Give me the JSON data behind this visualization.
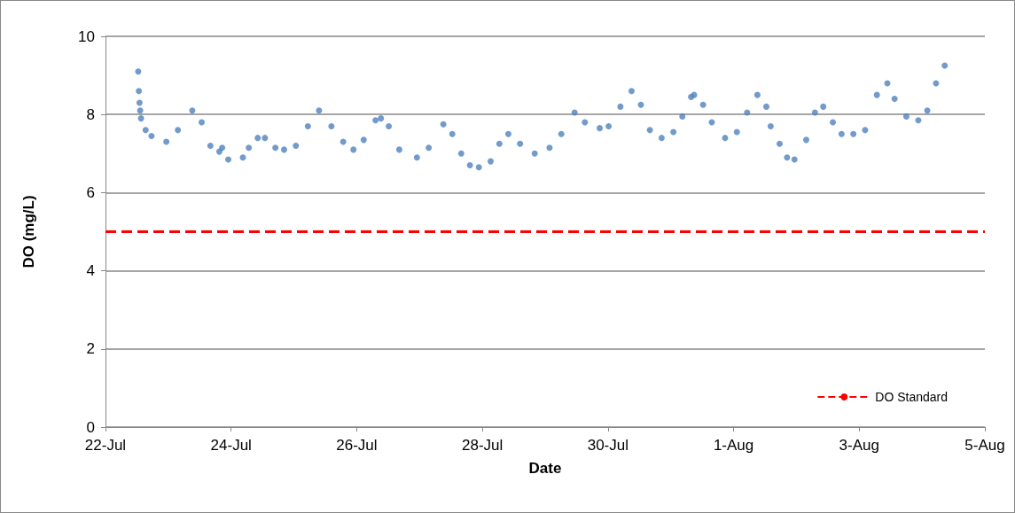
{
  "chart_data": {
    "type": "scatter",
    "xlabel": "Date",
    "ylabel": "DO (mg/L)",
    "x": [
      "--07-22T12:30",
      "--07-22T12:45",
      "--07-22T13:00",
      "--07-22T13:15",
      "--07-22T13:35",
      "--07-22T15:20",
      "--07-22T17:35",
      "--07-22T23:15",
      "--07-23T03:40",
      "--07-23T09:10",
      "--07-23T12:45",
      "--07-23T16:05",
      "--07-23T19:30",
      "--07-23T20:35",
      "--07-23T22:55",
      "--07-24T04:30",
      "--07-24T06:45",
      "--07-24T10:10",
      "--07-24T12:55",
      "--07-24T16:55",
      "--07-24T20:15",
      "--07-25T00:45",
      "--07-25T05:20",
      "--07-25T09:35",
      "--07-25T14:20",
      "--07-25T18:50",
      "--07-25T22:45",
      "--07-26T02:40",
      "--07-26T07:10",
      "--07-26T09:15",
      "--07-26T12:15",
      "--07-26T16:15",
      "--07-26T23:00",
      "--07-27T03:30",
      "--07-27T09:05",
      "--07-27T12:30",
      "--07-27T15:55",
      "--07-27T19:15",
      "--07-27T22:40",
      "--07-28T03:10",
      "--07-28T06:30",
      "--07-28T09:55",
      "--07-28T14:25",
      "--07-28T20:00",
      "--07-29T01:40",
      "--07-29T06:10",
      "--07-29T11:15",
      "--07-29T15:10",
      "--07-29T20:50",
      "--07-30T00:15",
      "--07-30T04:45",
      "--07-30T09:00",
      "--07-30T12:35",
      "--07-30T16:00",
      "--07-30T20:30",
      "--07-31T01:00",
      "--07-31T04:25",
      "--07-31T07:45",
      "--07-31T08:55",
      "--07-31T12:20",
      "--07-31T15:40",
      "--07-31T20:45",
      "--08-01T01:15",
      "--08-01T05:10",
      "--08-01T09:05",
      "--08-01T12:30",
      "--08-01T14:10",
      "--08-01T17:35",
      "--08-01T20:25",
      "--08-01T23:15",
      "--08-02T03:45",
      "--08-02T07:05",
      "--08-02T10:15",
      "--08-02T13:55",
      "--08-02T17:15",
      "--08-02T21:45",
      "--08-03T02:15",
      "--08-03T06:45",
      "--08-03T10:45",
      "--08-03T13:30",
      "--08-03T18:00",
      "--08-03T22:35",
      "--08-04T02:00",
      "--08-04T05:20",
      "--08-04T08:40"
    ],
    "series": [
      {
        "color": "#4f81bd",
        "values": [
          9.1,
          8.6,
          8.3,
          8.1,
          7.9,
          7.6,
          7.45,
          7.3,
          7.6,
          8.1,
          7.8,
          7.2,
          7.05,
          7.15,
          6.85,
          6.9,
          7.15,
          7.4,
          7.4,
          7.15,
          7.1,
          7.2,
          7.7,
          8.1,
          7.7,
          7.3,
          7.1,
          7.35,
          7.85,
          7.9,
          7.7,
          7.1,
          6.9,
          7.15,
          7.75,
          7.5,
          7.0,
          6.7,
          6.65,
          6.8,
          7.25,
          7.5,
          7.25,
          7.0,
          7.15,
          7.5,
          8.05,
          7.8,
          7.65,
          7.7,
          8.2,
          8.6,
          8.25,
          7.6,
          7.4,
          7.55,
          7.95,
          8.45,
          8.5,
          8.25,
          7.8,
          7.4,
          7.55,
          8.05,
          8.5,
          8.2,
          7.7,
          7.25,
          6.9,
          6.85,
          7.35,
          8.05,
          8.2,
          7.8,
          7.5,
          7.5,
          7.6,
          8.5,
          8.8,
          8.4,
          7.95,
          7.85,
          8.1,
          8.8,
          9.25
        ]
      }
    ],
    "xlim": [
      "--07-22",
      "--08-05"
    ],
    "xticks": [
      {
        "value": "--07-22",
        "label": "22-Jul"
      },
      {
        "value": "--07-24",
        "label": "24-Jul"
      },
      {
        "value": "--07-26",
        "label": "26-Jul"
      },
      {
        "value": "--07-28",
        "label": "28-Jul"
      },
      {
        "value": "--07-30",
        "label": "30-Jul"
      },
      {
        "value": "--08-01",
        "label": "1-Aug"
      },
      {
        "value": "--08-03",
        "label": "3-Aug"
      },
      {
        "value": "--08-05",
        "label": "5-Aug"
      }
    ],
    "ylim": [
      0,
      10
    ],
    "yticks": [
      0,
      2,
      4,
      6,
      8,
      10
    ],
    "ref_lines": [
      {
        "axis": "y",
        "value": 5,
        "label": "DO Standard",
        "color": "#ff0000",
        "line_style": "dashed"
      }
    ],
    "grid": "y",
    "legend": "bottom right",
    "marker": "circle"
  }
}
